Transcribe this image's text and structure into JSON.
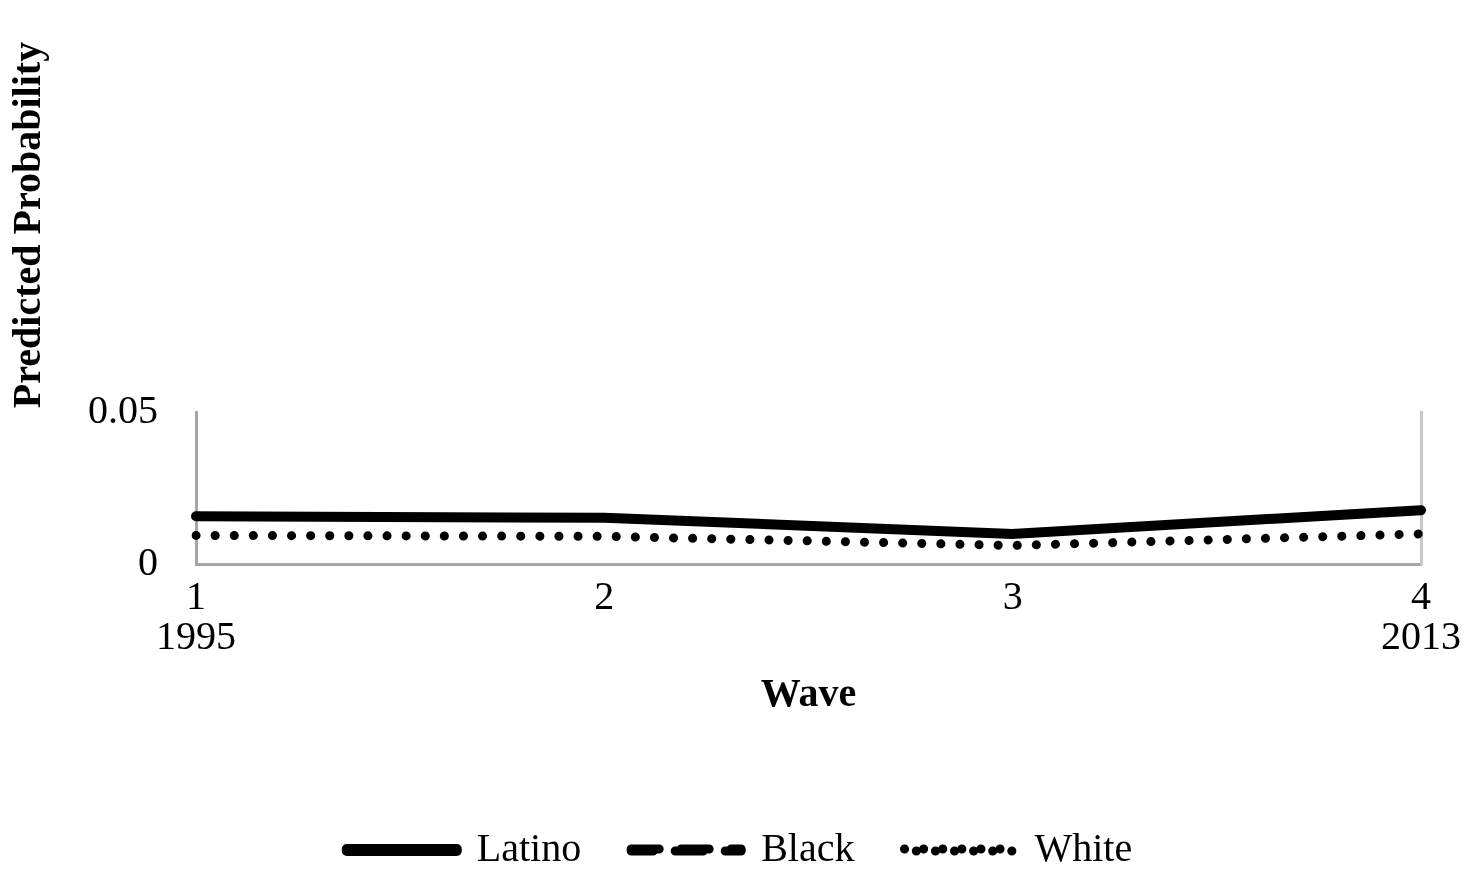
{
  "chart_data": {
    "type": "line",
    "xlabel": "Wave",
    "ylabel": "Predicted Probability",
    "categories": [
      "1\n1995",
      "2",
      "3",
      "4\n2013"
    ],
    "ylim": [
      0,
      0.05
    ],
    "yticks": [
      0,
      0.05
    ],
    "grid": false,
    "legend": "bottom",
    "marker": "none",
    "series": [
      {
        "name": "Latino",
        "color": "#000000",
        "line_style": "solid",
        "values": [
          0.0157,
          0.0152,
          0.0099,
          0.0177
        ]
      },
      {
        "name": "Black",
        "color": "#000000",
        "line_style": "dashed",
        "values": [
          null,
          null,
          null,
          null
        ]
      },
      {
        "name": "White",
        "color": "#000000",
        "line_style": "dotted",
        "values": [
          0.0094,
          0.0091,
          0.0061,
          0.0099
        ]
      }
    ]
  }
}
